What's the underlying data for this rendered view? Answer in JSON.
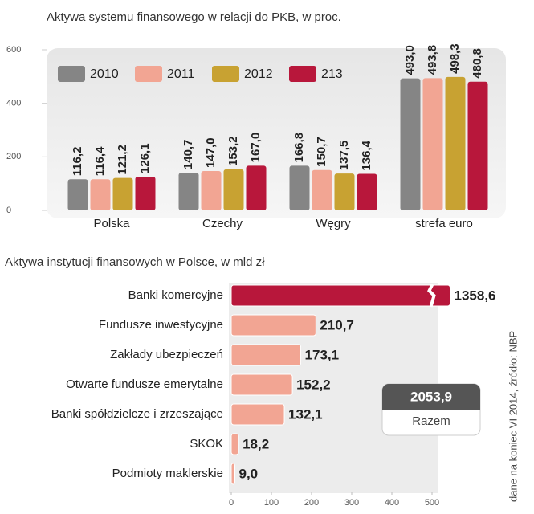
{
  "chart_data": [
    {
      "type": "bar",
      "title": "Aktywa systemu finansowego w relacji do PKB, w proc.",
      "categories": [
        "Polska",
        "Czechy",
        "Węgry",
        "strefa euro"
      ],
      "series": [
        {
          "name": "2010",
          "color": "#858585",
          "values": [
            116.2,
            140.7,
            166.8,
            493.0
          ],
          "value_labels": [
            "116,2",
            "140,7",
            "166,8",
            "493,0"
          ]
        },
        {
          "name": "2011",
          "color": "#f2a593",
          "values": [
            116.4,
            147.0,
            150.7,
            493.8
          ],
          "value_labels": [
            "116,4",
            "147,0",
            "150,7",
            "493,8"
          ]
        },
        {
          "name": "2012",
          "color": "#c8a232",
          "values": [
            121.2,
            153.2,
            137.5,
            498.3
          ],
          "value_labels": [
            "121,2",
            "153,2",
            "137,5",
            "498,3"
          ]
        },
        {
          "name": "213",
          "color": "#b8173b",
          "values": [
            126.1,
            167.0,
            136.4,
            480.8
          ],
          "value_labels": [
            "126,1",
            "167,0",
            "136,4",
            "480,8"
          ]
        }
      ],
      "ylim": [
        0,
        600
      ],
      "yticks": [
        0,
        200,
        400,
        600
      ],
      "legend": "top-left"
    },
    {
      "type": "hbar",
      "title": "Aktywa instytucji finansowych w Polsce, w mld zł",
      "categories": [
        "Banki komercyjne",
        "Fundusze inwestycyjne",
        "Zakłady ubezpieczeń",
        "Otwarte fundusze emerytalne",
        "Banki spółdzielcze i zrzeszające",
        "SKOK",
        "Podmioty maklerskie"
      ],
      "values": [
        1358.6,
        210.7,
        173.1,
        152.2,
        132.1,
        18.2,
        9.0
      ],
      "value_labels": [
        "1358,6",
        "210,7",
        "173,1",
        "152,2",
        "132,1",
        "18,2",
        "9,0"
      ],
      "colors": [
        "#b8173b",
        "#f2a593",
        "#f2a593",
        "#f2a593",
        "#f2a593",
        "#f2a593",
        "#f2a593"
      ],
      "xlim": [
        0,
        515
      ],
      "xticks": [
        0,
        100,
        200,
        300,
        400,
        500
      ],
      "total": 2053.9,
      "total_label": "2053,9",
      "total_name": "Razem",
      "source": "dane na koniec VI 2014, źródło: NBP"
    }
  ]
}
